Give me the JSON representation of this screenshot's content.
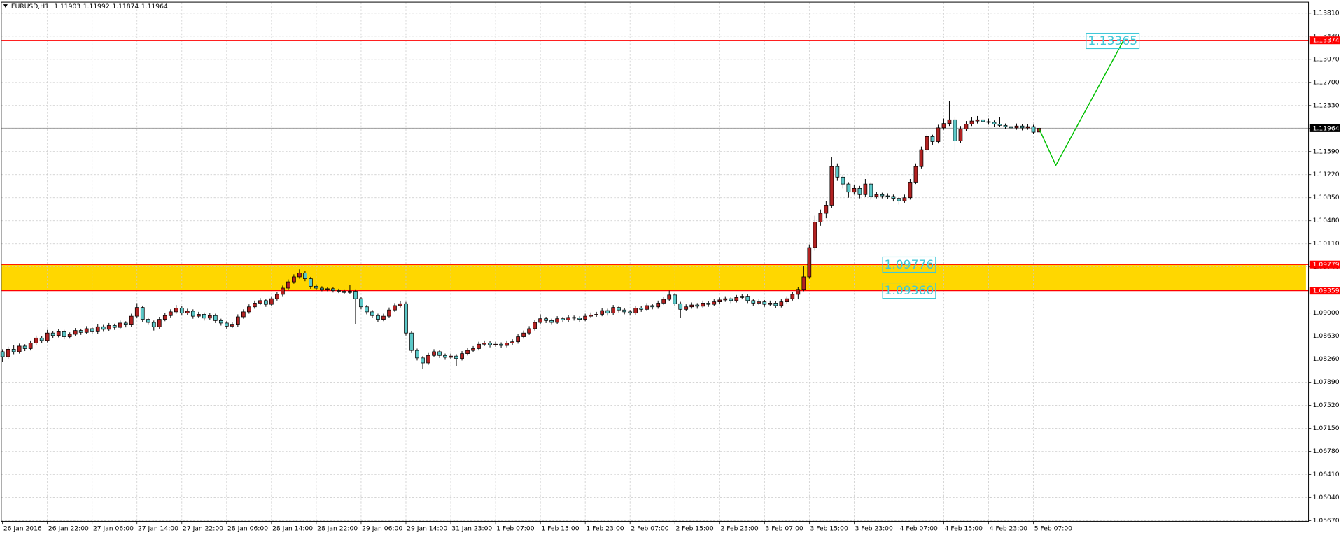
{
  "chart_data": {
    "type": "candlestick",
    "header": {
      "symbol": "EURUSD,H1",
      "open": 1.11903,
      "high": 1.11992,
      "low": 1.11874,
      "close": 1.11964
    },
    "up_color": "#b22222",
    "down_color": "#5cc8c8",
    "grid": true,
    "ylim": [
      1.0566,
      1.1398
    ],
    "xlim": [
      -0.15,
      233.1
    ],
    "yticks": [
      {
        "value": 1.1381,
        "label": "1.13810"
      },
      {
        "value": 1.1344,
        "label": "1.13440"
      },
      {
        "value": 1.1307,
        "label": "1.13070"
      },
      {
        "value": 1.127,
        "label": "1.12700"
      },
      {
        "value": 1.1233,
        "label": "1.12330"
      },
      {
        "value": 1.1196,
        "label": "1.11960"
      },
      {
        "value": 1.1159,
        "label": "1.11590"
      },
      {
        "value": 1.1122,
        "label": "1.11220"
      },
      {
        "value": 1.1085,
        "label": "1.10850"
      },
      {
        "value": 1.1048,
        "label": "1.10480"
      },
      {
        "value": 1.1011,
        "label": "1.10110"
      },
      {
        "value": 1.0974,
        "label": "1.09740"
      },
      {
        "value": 1.0937,
        "label": "1.09370"
      },
      {
        "value": 1.09,
        "label": "1.09000"
      },
      {
        "value": 1.0863,
        "label": "1.08630"
      },
      {
        "value": 1.0826,
        "label": "1.08260"
      },
      {
        "value": 1.0789,
        "label": "1.07890"
      },
      {
        "value": 1.0752,
        "label": "1.07520"
      },
      {
        "value": 1.0715,
        "label": "1.07150"
      },
      {
        "value": 1.0678,
        "label": "1.06780"
      },
      {
        "value": 1.0641,
        "label": "1.06410"
      },
      {
        "value": 1.0604,
        "label": "1.06040"
      },
      {
        "value": 1.0567,
        "label": "1.05670"
      }
    ],
    "xticks": [
      {
        "value": 0,
        "label": "26 Jan 2016"
      },
      {
        "value": 8,
        "label": "26 Jan 22:00"
      },
      {
        "value": 16,
        "label": "27 Jan 06:00"
      },
      {
        "value": 24,
        "label": "27 Jan 14:00"
      },
      {
        "value": 32,
        "label": "27 Jan 22:00"
      },
      {
        "value": 40,
        "label": "28 Jan 06:00"
      },
      {
        "value": 48,
        "label": "28 Jan 14:00"
      },
      {
        "value": 56,
        "label": "28 Jan 22:00"
      },
      {
        "value": 64,
        "label": "29 Jan 06:00"
      },
      {
        "value": 72,
        "label": "29 Jan 14:00"
      },
      {
        "value": 80,
        "label": "31 Jan 23:00"
      },
      {
        "value": 88,
        "label": "1 Feb 07:00"
      },
      {
        "value": 96,
        "label": "1 Feb 15:00"
      },
      {
        "value": 104,
        "label": "1 Feb 23:00"
      },
      {
        "value": 112,
        "label": "2 Feb 07:00"
      },
      {
        "value": 120,
        "label": "2 Feb 15:00"
      },
      {
        "value": 128,
        "label": "2 Feb 23:00"
      },
      {
        "value": 136,
        "label": "3 Feb 07:00"
      },
      {
        "value": 144,
        "label": "3 Feb 15:00"
      },
      {
        "value": 152,
        "label": "3 Feb 23:00"
      },
      {
        "value": 160,
        "label": "4 Feb 07:00"
      },
      {
        "value": 168,
        "label": "4 Feb 15:00"
      },
      {
        "value": 176,
        "label": "4 Feb 23:00"
      },
      {
        "value": 184,
        "label": "5 Feb 07:00"
      }
    ],
    "levels": [
      {
        "value": 1.13374,
        "color": "#ff0000"
      },
      {
        "value": 1.09779,
        "color": "#ff0000"
      },
      {
        "value": 1.09359,
        "color": "#ff0000"
      }
    ],
    "zone_color": "#ffd700",
    "bid_color": "#a0a0a0",
    "annotations": [
      {
        "value": 1.13365
      },
      {
        "value": 1.09776
      },
      {
        "value": 1.0936,
        "label": "1.09360"
      }
    ],
    "annotation_color": "#40c8d8",
    "projection": {
      "color": "#00c000",
      "x": [
        185,
        188,
        200
      ],
      "values": [
        1.1196,
        1.1137,
        1.1336
      ]
    },
    "ohlc": [
      [
        1.0838,
        1.0842,
        1.0822,
        1.083
      ],
      [
        1.083,
        1.0846,
        1.0826,
        1.0842
      ],
      [
        1.0842,
        1.0848,
        1.0834,
        1.0838
      ],
      [
        1.0838,
        1.0851,
        1.0835,
        1.0847
      ],
      [
        1.0847,
        1.085,
        1.0839,
        1.0843
      ],
      [
        1.0843,
        1.0856,
        1.084,
        1.0852
      ],
      [
        1.0852,
        1.0864,
        1.0849,
        1.086
      ],
      [
        1.086,
        1.0863,
        1.0852,
        1.0856
      ],
      [
        1.0856,
        1.0873,
        1.0853,
        1.0868
      ],
      [
        1.0868,
        1.0871,
        1.086,
        1.0864
      ],
      [
        1.0864,
        1.0874,
        1.0861,
        1.087
      ],
      [
        1.087,
        1.0873,
        1.0858,
        1.0862
      ],
      [
        1.0862,
        1.0869,
        1.0859,
        1.0866
      ],
      [
        1.0866,
        1.0876,
        1.0863,
        1.0872
      ],
      [
        1.0872,
        1.0875,
        1.0865,
        1.0869
      ],
      [
        1.0869,
        1.0879,
        1.0866,
        1.0875
      ],
      [
        1.0875,
        1.0878,
        1.0866,
        1.087
      ],
      [
        1.087,
        1.0882,
        1.0867,
        1.0878
      ],
      [
        1.0878,
        1.0881,
        1.087,
        1.0874
      ],
      [
        1.0874,
        1.0884,
        1.0871,
        1.088
      ],
      [
        1.088,
        1.0883,
        1.0873,
        1.0877
      ],
      [
        1.0877,
        1.0888,
        1.0874,
        1.0884
      ],
      [
        1.0884,
        1.0887,
        1.0877,
        1.0881
      ],
      [
        1.0881,
        1.0899,
        1.0878,
        1.0895
      ],
      [
        1.0895,
        1.0916,
        1.0892,
        1.0909
      ],
      [
        1.0909,
        1.0912,
        1.0886,
        1.089
      ],
      [
        1.089,
        1.0893,
        1.0881,
        1.0885
      ],
      [
        1.0885,
        1.0888,
        1.0872,
        1.0878
      ],
      [
        1.0878,
        1.0894,
        1.0875,
        1.089
      ],
      [
        1.089,
        1.09,
        1.0887,
        1.0896
      ],
      [
        1.0896,
        1.0906,
        1.0893,
        1.0902
      ],
      [
        1.0902,
        1.0913,
        1.0899,
        1.0908
      ],
      [
        1.0908,
        1.0911,
        1.0896,
        1.09
      ],
      [
        1.09,
        1.0907,
        1.0897,
        1.0903
      ],
      [
        1.0903,
        1.0906,
        1.0891,
        1.0895
      ],
      [
        1.0895,
        1.0902,
        1.0892,
        1.0898
      ],
      [
        1.0898,
        1.0901,
        1.0888,
        1.0892
      ],
      [
        1.0892,
        1.09,
        1.0889,
        1.0896
      ],
      [
        1.0896,
        1.0899,
        1.0884,
        1.0888
      ],
      [
        1.0888,
        1.0891,
        1.088,
        1.0884
      ],
      [
        1.0884,
        1.0887,
        1.0875,
        1.0879
      ],
      [
        1.0879,
        1.0885,
        1.0876,
        1.0881
      ],
      [
        1.0881,
        1.0898,
        1.0878,
        1.0894
      ],
      [
        1.0894,
        1.0906,
        1.0891,
        1.0902
      ],
      [
        1.0902,
        1.0914,
        1.0899,
        1.091
      ],
      [
        1.091,
        1.092,
        1.0907,
        1.0916
      ],
      [
        1.0916,
        1.0924,
        1.0913,
        1.092
      ],
      [
        1.092,
        1.0923,
        1.091,
        1.0914
      ],
      [
        1.0914,
        1.0927,
        1.0911,
        1.0923
      ],
      [
        1.0923,
        1.0934,
        1.092,
        1.093
      ],
      [
        1.093,
        1.0944,
        1.0927,
        1.094
      ],
      [
        1.094,
        1.0954,
        1.0937,
        1.095
      ],
      [
        1.095,
        1.0962,
        1.0947,
        1.0958
      ],
      [
        1.0958,
        1.097,
        1.0955,
        1.0964
      ],
      [
        1.0964,
        1.0967,
        1.0951,
        1.0955
      ],
      [
        1.0955,
        1.0958,
        1.0939,
        1.0943
      ],
      [
        1.0943,
        1.0946,
        1.0937,
        1.094
      ],
      [
        1.094,
        1.0943,
        1.0935,
        1.0938
      ],
      [
        1.0938,
        1.0942,
        1.0935,
        1.0939
      ],
      [
        1.0939,
        1.0942,
        1.0933,
        1.0936
      ],
      [
        1.0936,
        1.0939,
        1.0932,
        1.0935
      ],
      [
        1.0935,
        1.0938,
        1.093,
        1.0933
      ],
      [
        1.0933,
        1.0945,
        1.093,
        1.0935
      ],
      [
        1.0935,
        1.0938,
        1.0882,
        1.0923
      ],
      [
        1.0923,
        1.0926,
        1.0906,
        1.091
      ],
      [
        1.091,
        1.0913,
        1.0898,
        1.0902
      ],
      [
        1.0902,
        1.0905,
        1.0892,
        1.0896
      ],
      [
        1.0896,
        1.0899,
        1.0886,
        1.089
      ],
      [
        1.089,
        1.0899,
        1.0887,
        1.0895
      ],
      [
        1.0895,
        1.0909,
        1.0892,
        1.0905
      ],
      [
        1.0905,
        1.0916,
        1.0902,
        1.0912
      ],
      [
        1.0912,
        1.0919,
        1.0909,
        1.0915
      ],
      [
        1.0915,
        1.0918,
        1.0864,
        1.0868
      ],
      [
        1.0868,
        1.0871,
        1.0836,
        1.084
      ],
      [
        1.084,
        1.0843,
        1.0824,
        1.0828
      ],
      [
        1.0828,
        1.0831,
        1.081,
        1.082
      ],
      [
        1.082,
        1.0836,
        1.0817,
        1.0832
      ],
      [
        1.0832,
        1.0842,
        1.0829,
        1.0838
      ],
      [
        1.0838,
        1.0841,
        1.0828,
        1.0832
      ],
      [
        1.0832,
        1.0835,
        1.0825,
        1.0829
      ],
      [
        1.0829,
        1.0835,
        1.0826,
        1.0831
      ],
      [
        1.0831,
        1.0834,
        1.0815,
        1.0827
      ],
      [
        1.0827,
        1.0839,
        1.0824,
        1.0835
      ],
      [
        1.0835,
        1.0844,
        1.0832,
        1.084
      ],
      [
        1.084,
        1.0847,
        1.0837,
        1.0843
      ],
      [
        1.0843,
        1.0854,
        1.084,
        1.085
      ],
      [
        1.085,
        1.0856,
        1.0847,
        1.0852
      ],
      [
        1.0852,
        1.0855,
        1.0845,
        1.0849
      ],
      [
        1.0849,
        1.0854,
        1.0846,
        1.085
      ],
      [
        1.085,
        1.0853,
        1.0844,
        1.0848
      ],
      [
        1.0848,
        1.0856,
        1.0845,
        1.0852
      ],
      [
        1.0852,
        1.0858,
        1.0849,
        1.0854
      ],
      [
        1.0854,
        1.0866,
        1.0851,
        1.0862
      ],
      [
        1.0862,
        1.0872,
        1.0859,
        1.0868
      ],
      [
        1.0868,
        1.0879,
        1.0865,
        1.0875
      ],
      [
        1.0875,
        1.0889,
        1.0872,
        1.0885
      ],
      [
        1.0885,
        1.0898,
        1.0882,
        1.0891
      ],
      [
        1.0891,
        1.0894,
        1.0884,
        1.0888
      ],
      [
        1.0888,
        1.0891,
        1.0881,
        1.0885
      ],
      [
        1.0885,
        1.0895,
        1.0882,
        1.0891
      ],
      [
        1.0891,
        1.0894,
        1.0885,
        1.0889
      ],
      [
        1.0889,
        1.0897,
        1.0886,
        1.0893
      ],
      [
        1.0893,
        1.0896,
        1.0888,
        1.0892
      ],
      [
        1.0892,
        1.0895,
        1.0886,
        1.089
      ],
      [
        1.089,
        1.0899,
        1.0887,
        1.0895
      ],
      [
        1.0895,
        1.0901,
        1.0892,
        1.0897
      ],
      [
        1.0897,
        1.0902,
        1.0894,
        1.0898
      ],
      [
        1.0898,
        1.0908,
        1.0895,
        1.0904
      ],
      [
        1.0904,
        1.0907,
        1.0896,
        1.09
      ],
      [
        1.09,
        1.0913,
        1.0897,
        1.0909
      ],
      [
        1.0909,
        1.0912,
        1.0901,
        1.0905
      ],
      [
        1.0905,
        1.0908,
        1.0898,
        1.0902
      ],
      [
        1.0902,
        1.0905,
        1.0896,
        1.09
      ],
      [
        1.09,
        1.0912,
        1.0897,
        1.0908
      ],
      [
        1.0908,
        1.0911,
        1.0902,
        1.0906
      ],
      [
        1.0906,
        1.0916,
        1.0903,
        1.0912
      ],
      [
        1.0912,
        1.0915,
        1.0906,
        1.091
      ],
      [
        1.091,
        1.092,
        1.0907,
        1.0916
      ],
      [
        1.0916,
        1.0926,
        1.0913,
        1.0922
      ],
      [
        1.0922,
        1.0936,
        1.0919,
        1.0929
      ],
      [
        1.0929,
        1.0932,
        1.0911,
        1.0915
      ],
      [
        1.0915,
        1.0918,
        1.0892,
        1.0906
      ],
      [
        1.0906,
        1.0914,
        1.0903,
        1.091
      ],
      [
        1.091,
        1.0917,
        1.0907,
        1.0913
      ],
      [
        1.0913,
        1.0916,
        1.0907,
        1.0911
      ],
      [
        1.0911,
        1.092,
        1.0908,
        1.0916
      ],
      [
        1.0916,
        1.0919,
        1.091,
        1.0914
      ],
      [
        1.0914,
        1.0922,
        1.0911,
        1.0918
      ],
      [
        1.0918,
        1.0925,
        1.0915,
        1.0921
      ],
      [
        1.0921,
        1.0927,
        1.0918,
        1.0923
      ],
      [
        1.0923,
        1.0926,
        1.0916,
        1.092
      ],
      [
        1.092,
        1.0929,
        1.0917,
        1.0925
      ],
      [
        1.0925,
        1.0931,
        1.0922,
        1.0927
      ],
      [
        1.0927,
        1.093,
        1.0916,
        1.092
      ],
      [
        1.092,
        1.0923,
        1.0912,
        1.0916
      ],
      [
        1.0916,
        1.0922,
        1.0913,
        1.0918
      ],
      [
        1.0918,
        1.0921,
        1.091,
        1.0914
      ],
      [
        1.0914,
        1.092,
        1.0911,
        1.0916
      ],
      [
        1.0916,
        1.0919,
        1.0908,
        1.0912
      ],
      [
        1.0912,
        1.0922,
        1.0909,
        1.0918
      ],
      [
        1.0918,
        1.0927,
        1.0915,
        1.0923
      ],
      [
        1.0923,
        1.0934,
        1.092,
        1.093
      ],
      [
        1.093,
        1.0942,
        1.0922,
        1.0938
      ],
      [
        1.0938,
        1.0975,
        1.0935,
        1.0958
      ],
      [
        1.0958,
        1.101,
        1.0955,
        1.1005
      ],
      [
        1.1005,
        1.1056,
        1.1,
        1.1046
      ],
      [
        1.1046,
        1.1066,
        1.104,
        1.106
      ],
      [
        1.106,
        1.108,
        1.1052,
        1.1073
      ],
      [
        1.1073,
        1.115,
        1.1068,
        1.1135
      ],
      [
        1.1135,
        1.114,
        1.1112,
        1.1118
      ],
      [
        1.1118,
        1.1122,
        1.11,
        1.1107
      ],
      [
        1.1107,
        1.111,
        1.1085,
        1.1094
      ],
      [
        1.1094,
        1.1106,
        1.109,
        1.11
      ],
      [
        1.11,
        1.1104,
        1.1084,
        1.109
      ],
      [
        1.109,
        1.1115,
        1.1087,
        1.1107
      ],
      [
        1.1107,
        1.111,
        1.1082,
        1.1087
      ],
      [
        1.1087,
        1.1094,
        1.1084,
        1.109
      ],
      [
        1.109,
        1.1093,
        1.1084,
        1.1088
      ],
      [
        1.1088,
        1.1092,
        1.1083,
        1.1087
      ],
      [
        1.1087,
        1.109,
        1.1079,
        1.1084
      ],
      [
        1.1084,
        1.1087,
        1.1074,
        1.108
      ],
      [
        1.108,
        1.109,
        1.1077,
        1.1085
      ],
      [
        1.1085,
        1.1115,
        1.1082,
        1.111
      ],
      [
        1.111,
        1.114,
        1.1107,
        1.1135
      ],
      [
        1.1135,
        1.1167,
        1.1132,
        1.1162
      ],
      [
        1.1162,
        1.1188,
        1.1159,
        1.1183
      ],
      [
        1.1183,
        1.1186,
        1.117,
        1.1175
      ],
      [
        1.1175,
        1.1202,
        1.1172,
        1.1197
      ],
      [
        1.1197,
        1.1212,
        1.1194,
        1.1204
      ],
      [
        1.1204,
        1.124,
        1.12,
        1.121
      ],
      [
        1.121,
        1.1214,
        1.1158,
        1.1176
      ],
      [
        1.1176,
        1.12,
        1.1173,
        1.1195
      ],
      [
        1.1195,
        1.1208,
        1.1192,
        1.1203
      ],
      [
        1.1203,
        1.1214,
        1.12,
        1.1208
      ],
      [
        1.1208,
        1.1216,
        1.1204,
        1.121
      ],
      [
        1.121,
        1.1213,
        1.1203,
        1.1207
      ],
      [
        1.1207,
        1.1212,
        1.1202,
        1.1206
      ],
      [
        1.1206,
        1.1209,
        1.1199,
        1.1203
      ],
      [
        1.1203,
        1.1214,
        1.1198,
        1.1201
      ],
      [
        1.1201,
        1.1204,
        1.1195,
        1.1199
      ],
      [
        1.1199,
        1.1202,
        1.1193,
        1.1197
      ],
      [
        1.1197,
        1.1204,
        1.1194,
        1.12
      ],
      [
        1.12,
        1.1203,
        1.1193,
        1.1197
      ],
      [
        1.1197,
        1.1203,
        1.1194,
        1.1199
      ],
      [
        1.1199,
        1.1202,
        1.1187,
        1.119
      ],
      [
        1.11903,
        1.11992,
        1.11874,
        1.11964
      ]
    ]
  }
}
